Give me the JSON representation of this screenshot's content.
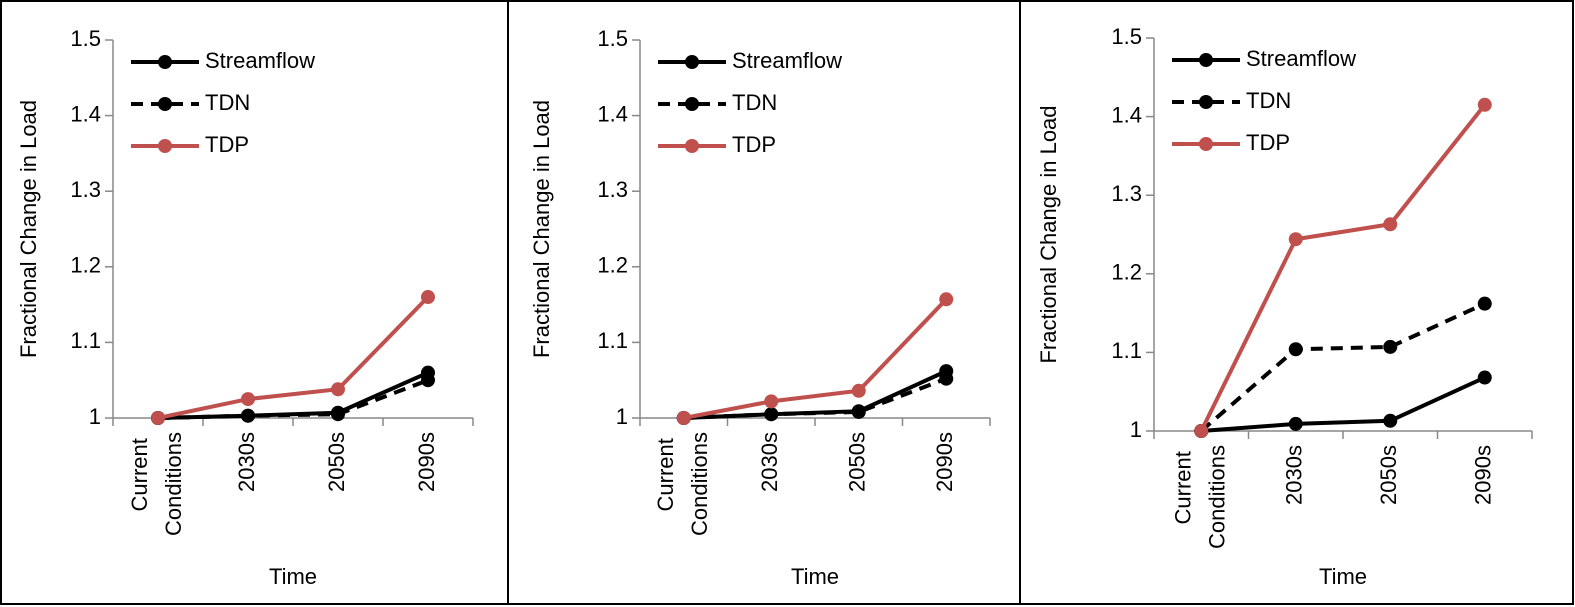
{
  "chart_data": [
    {
      "type": "line",
      "y_label": "Fractional Change in Load",
      "x_label": "Time",
      "categories": [
        "Current Conditions",
        "2030s",
        "2050s",
        "2090s"
      ],
      "ylim": [
        1,
        1.5
      ],
      "yticks": [
        1,
        1.1,
        1.2,
        1.3,
        1.4,
        1.5
      ],
      "legend": "upper left",
      "series": [
        {
          "name": "Streamflow",
          "color": "#000000",
          "dash": "solid",
          "values": [
            1,
            1.003,
            1.007,
            1.06
          ]
        },
        {
          "name": "TDN",
          "color": "#000000",
          "dash": "dashed",
          "values": [
            1,
            1.003,
            1.005,
            1.05
          ]
        },
        {
          "name": "TDP",
          "color": "#c0504d",
          "dash": "solid",
          "values": [
            1,
            1.025,
            1.038,
            1.16
          ]
        }
      ]
    },
    {
      "type": "line",
      "y_label": "Fractional Change in Load",
      "x_label": "Time",
      "categories": [
        "Current Conditions",
        "2030s",
        "2050s",
        "2090s"
      ],
      "ylim": [
        1,
        1.5
      ],
      "yticks": [
        1,
        1.1,
        1.2,
        1.3,
        1.4,
        1.5
      ],
      "legend": "upper left",
      "series": [
        {
          "name": "Streamflow",
          "color": "#000000",
          "dash": "solid",
          "values": [
            1,
            1.005,
            1.009,
            1.062
          ]
        },
        {
          "name": "TDN",
          "color": "#000000",
          "dash": "dashed",
          "values": [
            1,
            1.005,
            1.008,
            1.052
          ]
        },
        {
          "name": "TDP",
          "color": "#c0504d",
          "dash": "solid",
          "values": [
            1,
            1.022,
            1.036,
            1.157
          ]
        }
      ]
    },
    {
      "type": "line",
      "y_label": "Fractional Change in Load",
      "x_label": "Time",
      "categories": [
        "Current Conditions",
        "2030s",
        "2050s",
        "2090s"
      ],
      "ylim": [
        1,
        1.5
      ],
      "yticks": [
        1,
        1.1,
        1.2,
        1.3,
        1.4,
        1.5
      ],
      "legend": "upper left",
      "series": [
        {
          "name": "Streamflow",
          "color": "#000000",
          "dash": "solid",
          "values": [
            1,
            1.009,
            1.013,
            1.068
          ]
        },
        {
          "name": "TDN",
          "color": "#000000",
          "dash": "dashed",
          "values": [
            1,
            1.104,
            1.107,
            1.162
          ]
        },
        {
          "name": "TDP",
          "color": "#c0504d",
          "dash": "solid",
          "values": [
            1,
            1.244,
            1.263,
            1.415
          ]
        }
      ]
    }
  ]
}
